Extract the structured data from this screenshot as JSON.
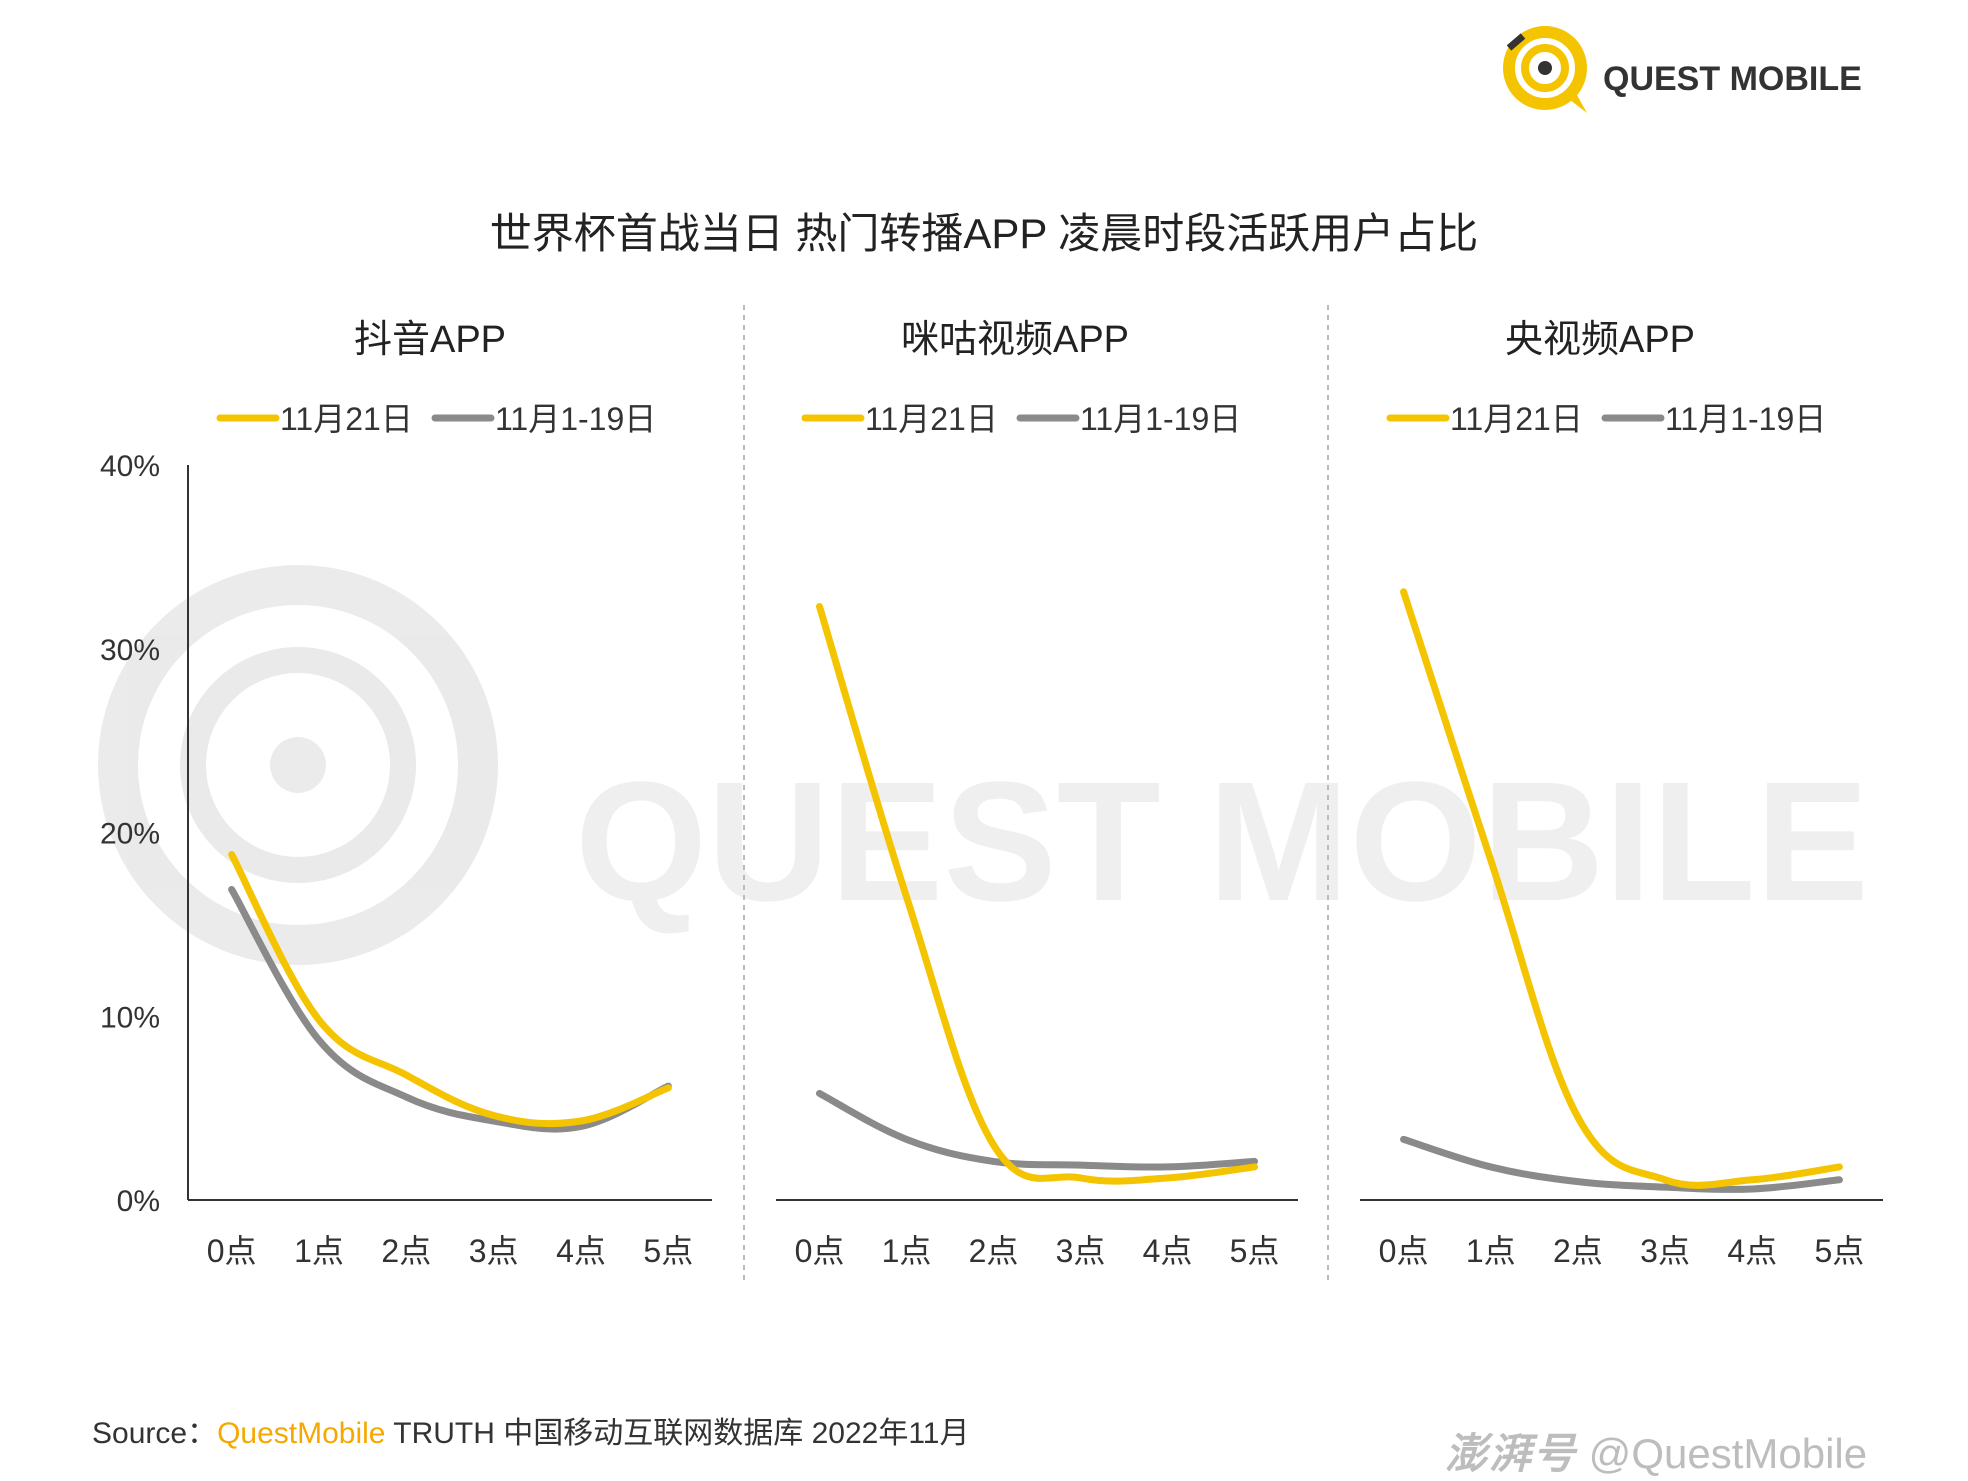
{
  "logo": {
    "text": "QUEST MOBILE",
    "color": "#f5c400"
  },
  "watermark": {
    "text": "QUEST MOBILE"
  },
  "title": "世界杯首战当日 热门转播APP 凌晨时段活跃用户占比",
  "colors": {
    "series_current": "#f5c400",
    "series_baseline": "#8a8a8a",
    "axis": "#333333",
    "divider": "#bbbbbb"
  },
  "chart_data": [
    {
      "type": "line",
      "title": "抖音APP",
      "categories": [
        "0点",
        "1点",
        "2点",
        "3点",
        "4点",
        "5点"
      ],
      "yticks": [
        "0%",
        "10%",
        "20%",
        "30%",
        "40%"
      ],
      "ylim": [
        0,
        40
      ],
      "series": [
        {
          "name": "11月21日",
          "values": [
            18.8,
            9.8,
            6.8,
            4.6,
            4.3,
            6.1
          ]
        },
        {
          "name": "11月1-19日",
          "values": [
            16.9,
            8.7,
            5.6,
            4.3,
            4.0,
            6.2
          ]
        }
      ]
    },
    {
      "type": "line",
      "title": "咪咕视频APP",
      "categories": [
        "0点",
        "1点",
        "2点",
        "3点",
        "4点",
        "5点"
      ],
      "yticks": [],
      "ylim": [
        0,
        40
      ],
      "series": [
        {
          "name": "11月21日",
          "values": [
            32.3,
            16.5,
            3.0,
            1.2,
            1.2,
            1.8
          ]
        },
        {
          "name": "11月1-19日",
          "values": [
            5.8,
            3.3,
            2.1,
            1.9,
            1.8,
            2.1
          ]
        }
      ]
    },
    {
      "type": "line",
      "title": "央视频APP",
      "categories": [
        "0点",
        "1点",
        "2点",
        "3点",
        "4点",
        "5点"
      ],
      "yticks": [],
      "ylim": [
        0,
        40
      ],
      "series": [
        {
          "name": "11月21日",
          "values": [
            33.1,
            18.5,
            4.5,
            1.1,
            1.1,
            1.8
          ]
        },
        {
          "name": "11月1-19日",
          "values": [
            3.3,
            1.8,
            1.0,
            0.7,
            0.6,
            1.1
          ]
        }
      ]
    }
  ],
  "footer": {
    "prefix": "Source：",
    "brand": "QuestMobile",
    "rest": " TRUTH 中国移动互联网数据库 2022年11月"
  },
  "credit": {
    "left": "澎湃号",
    "right": " @QuestMobile"
  }
}
